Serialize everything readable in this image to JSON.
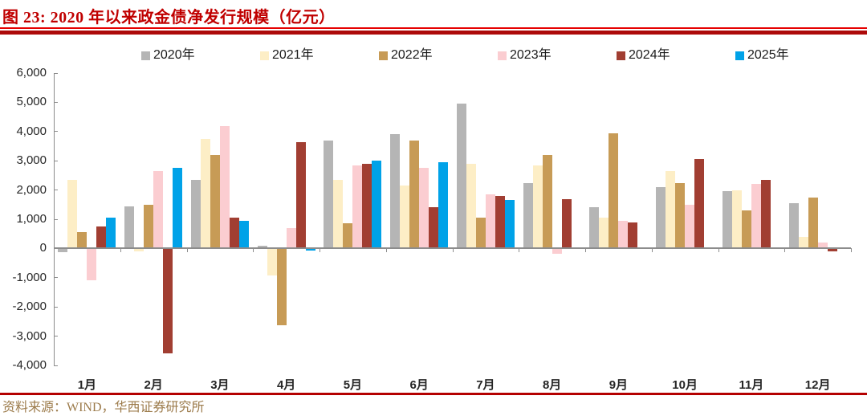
{
  "title": "图 23:  2020 年以来政金债净发行规模（亿元）",
  "source_note": "资料来源：WIND，华西证券研究所",
  "colors": {
    "title_red": "#c00000",
    "rule_bright_red": "#e60000",
    "rule_dark_red": "#ad0a0a",
    "bottom_rule_red": "#b40000",
    "source_text": "#9c7b4b",
    "axis": "#8c8c8c",
    "axis_text": "#262626"
  },
  "chart_data": {
    "type": "bar",
    "title": "图 23: 2020 年以来政金债净发行规模（亿元）",
    "unit": "亿元",
    "categories": [
      "1月",
      "2月",
      "3月",
      "4月",
      "5月",
      "6月",
      "7月",
      "8月",
      "9月",
      "10月",
      "11月",
      "12月"
    ],
    "series": [
      {
        "name": "2020年",
        "color": "#b5b5b5",
        "values": [
          -100,
          1450,
          2350,
          100,
          3700,
          3900,
          4950,
          2250,
          1400,
          2100,
          1950,
          1550
        ]
      },
      {
        "name": "2021年",
        "color": "#fdeec6",
        "values": [
          2350,
          -60,
          3750,
          -900,
          2350,
          2150,
          2900,
          2850,
          1050,
          2650,
          2000,
          400
        ]
      },
      {
        "name": "2022年",
        "color": "#c79b56",
        "values": [
          550,
          1500,
          3200,
          -2600,
          850,
          3700,
          1050,
          3200,
          3950,
          2250,
          1300,
          1750
        ]
      },
      {
        "name": "2023年",
        "color": "#fbcdd1",
        "values": [
          -1050,
          2650,
          4200,
          700,
          2850,
          2750,
          1850,
          -150,
          950,
          1500,
          2200,
          200
        ]
      },
      {
        "name": "2024年",
        "color": "#a13e32",
        "values": [
          750,
          -3550,
          1050,
          3650,
          2900,
          1400,
          1800,
          1700,
          900,
          3050,
          2350,
          -60
        ]
      },
      {
        "name": "2025年",
        "color": "#00a2e8",
        "values": [
          1050,
          2750,
          950,
          -50,
          3000,
          2950,
          1650,
          null,
          null,
          null,
          null,
          null
        ]
      }
    ],
    "ylim": [
      -4000,
      6000
    ],
    "ytick_step": 1000,
    "ytick_labels": [
      "6,000",
      "5,000",
      "4,000",
      "3,000",
      "2,000",
      "1,000",
      "0",
      "-1,000",
      "-2,000",
      "-3,000",
      "-4,000"
    ],
    "grid": false,
    "legend_position": "top"
  }
}
